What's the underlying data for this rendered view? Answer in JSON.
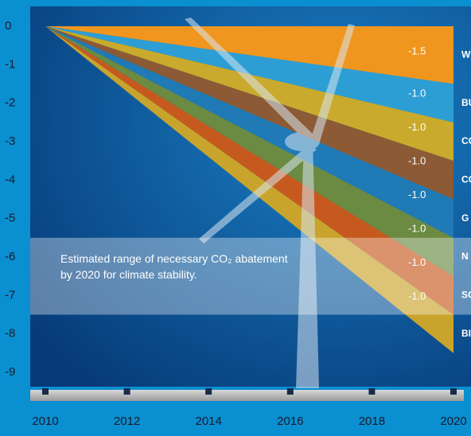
{
  "chart_data": {
    "type": "area",
    "x": [
      2010,
      2020
    ],
    "xlim": [
      2010,
      2020
    ],
    "xticks": [
      2010,
      2012,
      2014,
      2016,
      2018,
      2020
    ],
    "ylim": [
      -9,
      0
    ],
    "yticks": [
      0,
      -1,
      -2,
      -3,
      -4,
      -5,
      -6,
      -7,
      -8,
      -9
    ],
    "annotation": "Estimated  range of necessary CO₂ abatement by 2020 for climate stability.",
    "annotation_range": [
      -5.5,
      -7.5
    ],
    "series": [
      {
        "name": "W",
        "color": "#f0961e",
        "values": [
          0,
          -1.5
        ],
        "value_labels": [
          "-1.5"
        ]
      },
      {
        "name": "BU",
        "color": "#2d9ed4",
        "values": [
          0,
          -1.0
        ],
        "value_labels": [
          "-1.0"
        ]
      },
      {
        "name": "CO",
        "color": "#c9aa2c",
        "values": [
          0,
          -1.0
        ],
        "value_labels": [
          "-1.0"
        ]
      },
      {
        "name": "CO M",
        "color": "#8c5a34",
        "values": [
          0,
          -1.0
        ],
        "value_labels": [
          "-1.0"
        ]
      },
      {
        "name": "G",
        "color": "#1f7ab6",
        "values": [
          0,
          -1.0
        ],
        "value_labels": [
          "-1.0"
        ]
      },
      {
        "name": "N",
        "color": "#6b8a42",
        "values": [
          0,
          -1.0
        ],
        "value_labels": [
          "-1.0"
        ]
      },
      {
        "name": "SO",
        "color": "#c65a1e",
        "values": [
          0,
          -1.0
        ],
        "value_labels": [
          "-1.0"
        ]
      },
      {
        "name": "BI",
        "color": "#c9a42c",
        "values": [
          0,
          -1.0
        ],
        "value_labels": [
          "-1.0"
        ]
      }
    ]
  }
}
